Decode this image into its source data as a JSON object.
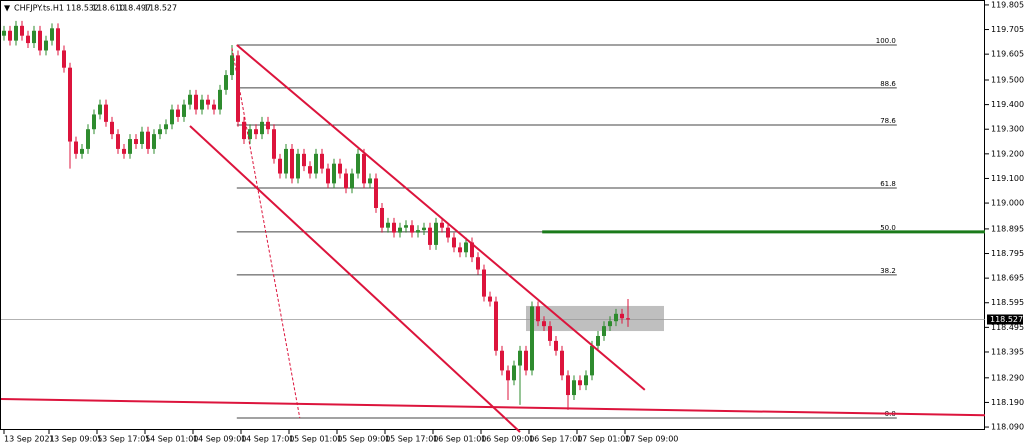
{
  "chart_data": {
    "type": "candlestick",
    "header": {
      "symbol": "CHFJPY.ts.H1",
      "quote": [
        "118.532",
        "118.610",
        "118.497",
        "118.527"
      ]
    },
    "up_color": "#2e8b2e",
    "down_color": "#dc143c",
    "open": [
      119.68,
      119.7,
      119.66,
      119.72,
      119.68,
      119.65,
      119.7,
      119.62,
      119.66,
      119.71,
      119.62,
      119.55,
      119.25,
      119.2,
      119.22,
      119.3,
      119.36,
      119.4,
      119.33,
      119.28,
      119.22,
      119.2,
      119.26,
      119.24,
      119.29,
      119.22,
      119.28,
      119.3,
      119.32,
      119.38,
      119.35,
      119.4,
      119.44,
      119.38,
      119.42,
      119.4,
      119.38,
      119.46,
      119.52,
      119.6,
      119.33,
      119.26,
      119.3,
      119.28,
      119.33,
      119.3,
      119.18,
      119.12,
      119.22,
      119.1,
      119.2,
      119.15,
      119.12,
      119.2,
      119.14,
      119.08,
      119.16,
      119.12,
      119.06,
      119.12,
      119.2,
      119.08,
      119.1,
      118.98,
      118.9,
      118.92,
      118.88,
      118.9,
      118.91,
      118.88,
      118.89,
      118.9,
      118.83,
      118.92,
      118.9,
      118.86,
      118.82,
      118.8,
      118.84,
      118.78,
      118.73,
      118.62,
      118.6,
      118.4,
      118.32,
      118.28,
      118.34,
      118.4,
      118.32,
      118.58,
      118.52,
      118.5,
      118.44,
      118.4,
      118.3,
      118.22,
      118.28,
      118.26,
      118.3,
      118.42,
      118.46,
      118.5,
      118.52,
      118.55,
      118.532
    ],
    "high": [
      119.72,
      119.72,
      119.74,
      119.74,
      119.7,
      119.72,
      119.72,
      119.68,
      119.73,
      119.73,
      119.64,
      119.57,
      119.27,
      119.24,
      119.32,
      119.38,
      119.42,
      119.42,
      119.35,
      119.3,
      119.24,
      119.28,
      119.28,
      119.31,
      119.31,
      119.3,
      119.32,
      119.34,
      119.4,
      119.4,
      119.42,
      119.46,
      119.46,
      119.44,
      119.44,
      119.42,
      119.48,
      119.54,
      119.642,
      119.62,
      119.35,
      119.32,
      119.32,
      119.35,
      119.35,
      119.32,
      119.2,
      119.24,
      119.24,
      119.22,
      119.22,
      119.17,
      119.22,
      119.22,
      119.16,
      119.18,
      119.18,
      119.14,
      119.14,
      119.22,
      119.22,
      119.12,
      119.12,
      119.0,
      118.94,
      118.94,
      118.92,
      118.93,
      118.93,
      118.91,
      118.92,
      118.92,
      118.94,
      118.94,
      118.92,
      118.88,
      118.84,
      118.86,
      118.86,
      118.8,
      118.75,
      118.64,
      118.62,
      118.42,
      118.34,
      118.36,
      118.42,
      118.42,
      118.6,
      118.6,
      118.54,
      118.52,
      118.46,
      118.42,
      118.32,
      118.3,
      118.3,
      118.32,
      118.44,
      118.48,
      118.52,
      118.54,
      118.57,
      118.57,
      118.61
    ],
    "low": [
      119.66,
      119.64,
      119.64,
      119.66,
      119.63,
      119.63,
      119.6,
      119.6,
      119.64,
      119.6,
      119.53,
      119.14,
      119.18,
      119.18,
      119.2,
      119.28,
      119.34,
      119.31,
      119.26,
      119.2,
      119.18,
      119.18,
      119.22,
      119.22,
      119.2,
      119.2,
      119.26,
      119.28,
      119.3,
      119.33,
      119.33,
      119.38,
      119.36,
      119.36,
      119.38,
      119.36,
      119.36,
      119.44,
      119.5,
      119.31,
      119.24,
      119.24,
      119.26,
      119.26,
      119.28,
      119.16,
      119.1,
      119.1,
      119.08,
      119.08,
      119.13,
      119.1,
      119.1,
      119.12,
      119.06,
      119.06,
      119.1,
      119.04,
      119.04,
      119.1,
      119.06,
      119.06,
      118.96,
      118.88,
      118.88,
      118.86,
      118.86,
      118.88,
      118.86,
      118.86,
      118.87,
      118.81,
      118.81,
      118.88,
      118.84,
      118.8,
      118.78,
      118.78,
      118.76,
      118.71,
      118.6,
      118.58,
      118.38,
      118.3,
      118.2,
      118.26,
      118.18,
      118.3,
      118.3,
      118.5,
      118.48,
      118.42,
      118.38,
      118.28,
      118.16,
      118.2,
      118.24,
      118.24,
      118.28,
      118.4,
      118.44,
      118.48,
      118.5,
      118.51,
      118.497
    ],
    "close": [
      119.7,
      119.66,
      119.72,
      119.68,
      119.65,
      119.7,
      119.62,
      119.66,
      119.71,
      119.62,
      119.55,
      119.25,
      119.2,
      119.22,
      119.3,
      119.36,
      119.4,
      119.33,
      119.28,
      119.22,
      119.2,
      119.26,
      119.24,
      119.29,
      119.22,
      119.28,
      119.3,
      119.32,
      119.38,
      119.35,
      119.4,
      119.44,
      119.38,
      119.42,
      119.4,
      119.38,
      119.46,
      119.52,
      119.6,
      119.33,
      119.26,
      119.3,
      119.28,
      119.33,
      119.3,
      119.18,
      119.12,
      119.22,
      119.1,
      119.2,
      119.15,
      119.12,
      119.2,
      119.14,
      119.08,
      119.16,
      119.12,
      119.06,
      119.12,
      119.2,
      119.08,
      119.1,
      118.98,
      118.9,
      118.92,
      118.88,
      118.9,
      118.91,
      118.88,
      118.89,
      118.9,
      118.83,
      118.92,
      118.9,
      118.86,
      118.82,
      118.8,
      118.84,
      118.78,
      118.73,
      118.62,
      118.6,
      118.4,
      118.32,
      118.28,
      118.34,
      118.4,
      118.32,
      118.58,
      118.52,
      118.5,
      118.44,
      118.4,
      118.3,
      118.22,
      118.28,
      118.26,
      118.3,
      118.42,
      118.46,
      118.5,
      118.52,
      118.55,
      118.532,
      118.527
    ],
    "xlim": [
      -0.5,
      163.5
    ],
    "xticks": [
      {
        "value": 0,
        "label": "13 Sep 2021"
      },
      {
        "value": 7.5,
        "label": "13 Sep 09:05"
      },
      {
        "value": 15.5,
        "label": "13 Sep 17:05"
      },
      {
        "value": 23.5,
        "label": "14 Sep 01:00"
      },
      {
        "value": 31.5,
        "label": "14 Sep 09:00"
      },
      {
        "value": 39.5,
        "label": "14 Sep 17:00"
      },
      {
        "value": 47.5,
        "label": "15 Sep 01:00"
      },
      {
        "value": 55.5,
        "label": "15 Sep 09:00"
      },
      {
        "value": 63.5,
        "label": "15 Sep 17:00"
      },
      {
        "value": 71.5,
        "label": "16 Sep 01:00"
      },
      {
        "value": 79.5,
        "label": "16 Sep 09:00"
      },
      {
        "value": 87.5,
        "label": "16 Sep 17:00"
      },
      {
        "value": 95.5,
        "label": "17 Sep 01:00"
      },
      {
        "value": 103.5,
        "label": "17 Sep 09:00"
      }
    ],
    "ylim": [
      118.078,
      119.825
    ],
    "yticks": [
      119.805,
      119.705,
      119.605,
      {
        "value": 119.5,
        "label": "119.500"
      },
      {
        "value": 119.4,
        "label": "119.400"
      },
      {
        "value": 119.3,
        "label": "119.300"
      },
      {
        "value": 119.2,
        "label": "119.200"
      },
      {
        "value": 119.1,
        "label": "119.100"
      },
      {
        "value": 119,
        "label": "119.000"
      },
      118.895,
      118.795,
      118.695,
      118.595,
      118.495,
      118.395,
      {
        "value": 118.29,
        "label": "118.290"
      },
      {
        "value": 118.19,
        "label": "118.190"
      },
      {
        "value": 118.09,
        "label": "118.090"
      }
    ],
    "fibo": {
      "x": [
        38.8,
        148.8
      ],
      "color": "#444444",
      "levels": [
        {
          "label": "100.0",
          "price": 119.642
        },
        {
          "label": "88.6",
          "price": 119.468
        },
        {
          "label": "78.6",
          "price": 119.317
        },
        {
          "label": "61.8",
          "price": 119.061
        },
        {
          "label": "50.0",
          "price": 118.883
        },
        {
          "label": "38.2",
          "price": 118.708
        },
        {
          "label": "0.0",
          "price": 118.127
        }
      ]
    },
    "lines": [
      {
        "x": [
          38.8,
          106.8
        ],
        "y": [
          119.642,
          118.241
        ],
        "color": "#dc143c",
        "width": 2,
        "dashed": false
      },
      {
        "x": [
          31,
          86
        ],
        "y": [
          119.313,
          118.07
        ],
        "color": "#dc143c",
        "width": 2,
        "dashed": false
      },
      {
        "x": [
          38,
          49.3
        ],
        "y": [
          119.63,
          118.127
        ],
        "color": "#dc143c",
        "width": 1,
        "dashed": true
      },
      {
        "x": [
          -0.5,
          163.5
        ],
        "y": [
          118.204,
          118.138
        ],
        "color": "#dc143c",
        "width": 2,
        "dashed": false
      },
      {
        "x": [
          89.7,
          163.5
        ],
        "y": [
          118.883,
          118.883
        ],
        "color": "#1a7a1a",
        "width": 3,
        "dashed": false
      }
    ],
    "zone": {
      "x": [
        87,
        110
      ],
      "y": [
        118.582,
        118.48
      ],
      "color": "#b4b4b4"
    }
  }
}
